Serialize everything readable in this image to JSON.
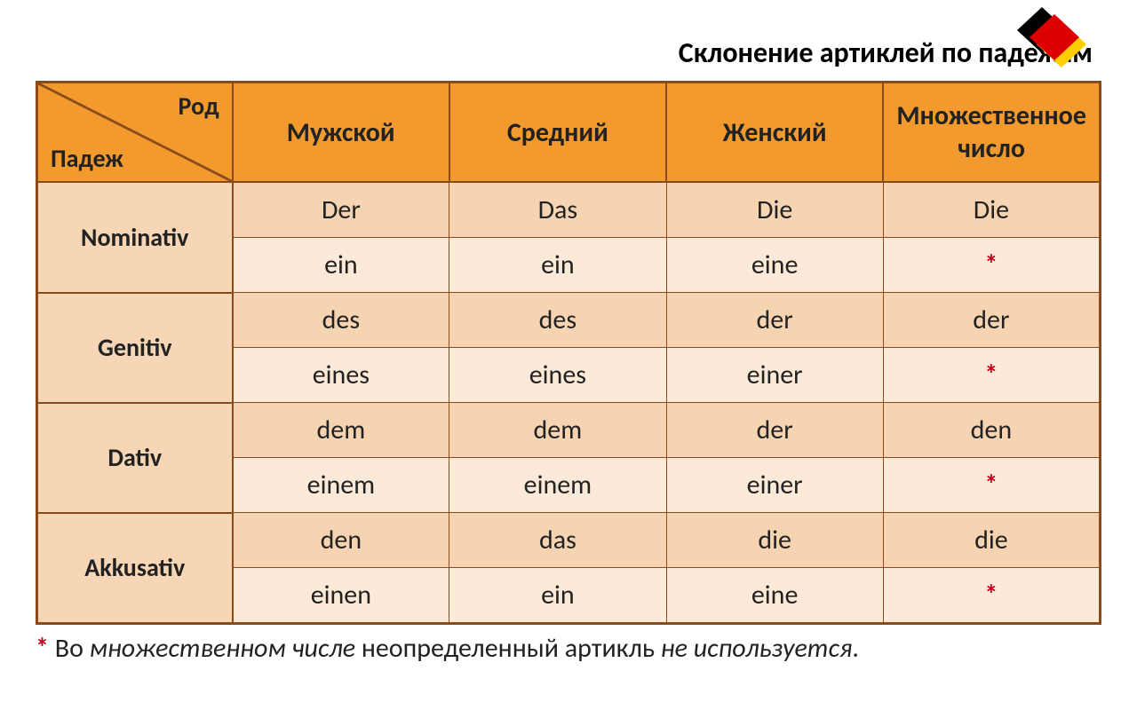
{
  "title": "Склонение артиклей по падежам",
  "corner": {
    "top": "Род",
    "bottom": "Падеж"
  },
  "columns": [
    "Мужской",
    "Средний",
    "Женский",
    "Множественное\nчисло"
  ],
  "cases": [
    {
      "name": "Nominativ",
      "def": [
        "Der",
        "Das",
        "Die",
        "Die"
      ],
      "indef": [
        "ein",
        "ein",
        "eine",
        "*"
      ]
    },
    {
      "name": "Genitiv",
      "def": [
        "des",
        "des",
        "der",
        "der"
      ],
      "indef": [
        "eines",
        "eines",
        "einer",
        "*"
      ]
    },
    {
      "name": "Dativ",
      "def": [
        "dem",
        "dem",
        "der",
        "den"
      ],
      "indef": [
        "einem",
        "einem",
        "einer",
        "*"
      ]
    },
    {
      "name": "Akkusativ",
      "def": [
        "den",
        "das",
        "die",
        "die"
      ],
      "indef": [
        "einen",
        "ein",
        "eine",
        "*"
      ]
    }
  ],
  "footnote": {
    "star": "*",
    "parts": [
      "Во ",
      "множественном числе",
      " неопределенный артикль ",
      "не используется",
      "."
    ]
  },
  "colors": {
    "header_bg": "#f29a2e",
    "row_label_bg": "#f6d6b5",
    "row_lite_bg": "#fce9d7",
    "row_dark_bg": "#f7d4b1",
    "border": "#8a4a1a",
    "star": "#c00020",
    "flag": {
      "black": "#000000",
      "red": "#dd0000",
      "gold": "#ffce00"
    }
  },
  "fontsize": {
    "title": 32,
    "header": 30,
    "cell": 30,
    "rowlabel": 28,
    "footnote": 30
  }
}
